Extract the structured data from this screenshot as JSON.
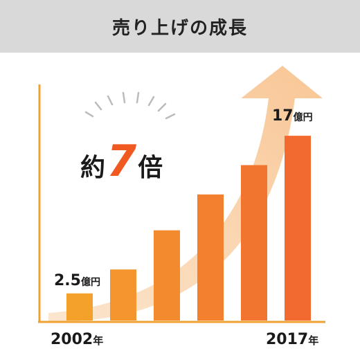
{
  "header": {
    "title": "売り上げの成長"
  },
  "callout": {
    "prefix": "約",
    "multiplier": "7",
    "suffix": "倍"
  },
  "labels": {
    "first_value": "2.5",
    "first_unit": "億円",
    "last_value": "17",
    "last_unit": "億円",
    "start_year": "2002",
    "start_year_unit": "年",
    "end_year": "2017",
    "end_year_unit": "年"
  },
  "colors": {
    "axis": "#f0a030",
    "bar_start": "#f4a12c",
    "bar_end": "#f26a30",
    "arrow": "#f8c898",
    "accent": "#f05a20"
  },
  "chart_data": {
    "type": "bar",
    "unit": "億円",
    "values": [
      2.5,
      4.7,
      8.3,
      11.6,
      14.3,
      17
    ],
    "ylim": [
      0,
      20
    ],
    "grid": false
  }
}
